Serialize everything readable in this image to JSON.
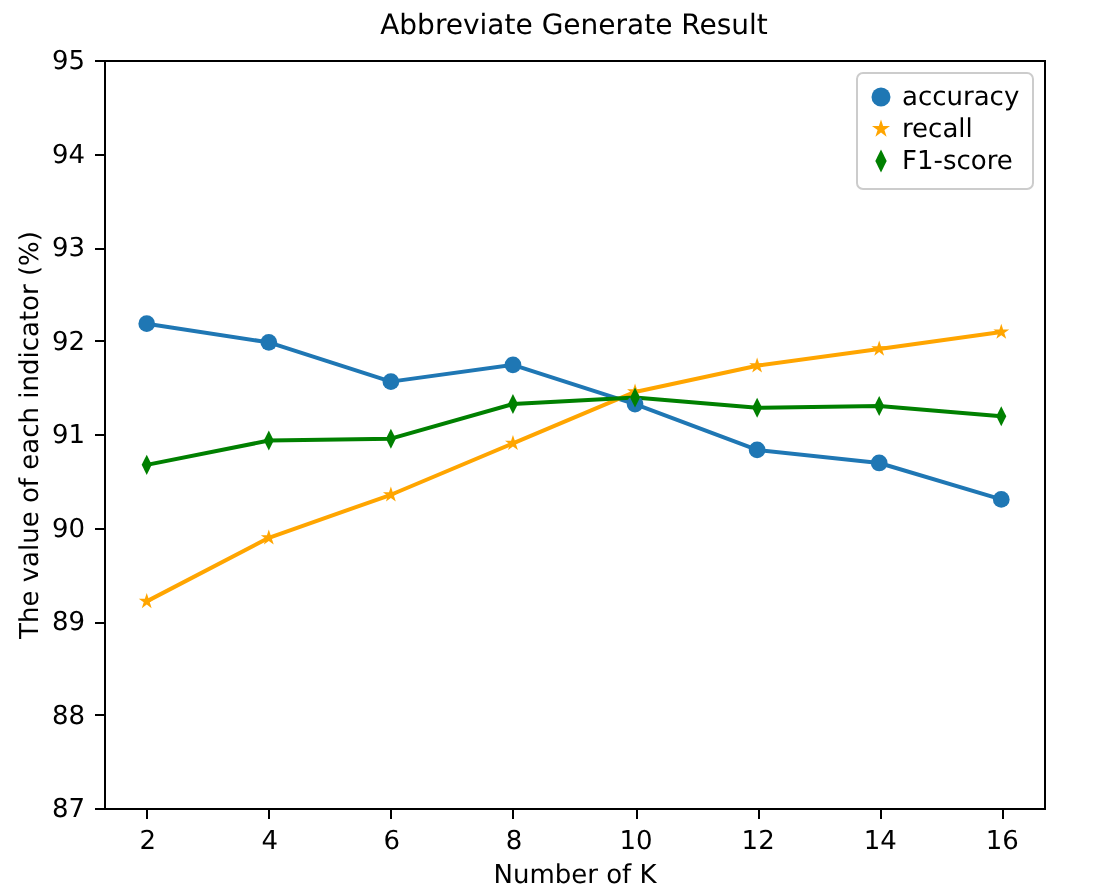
{
  "chart_data": {
    "type": "line",
    "title": "Abbreviate Generate Result",
    "xlabel": "Number of K",
    "ylabel": "The value of each indicator (%)",
    "x": [
      2,
      4,
      6,
      8,
      10,
      12,
      14,
      16
    ],
    "xlim": [
      1.3,
      16.7
    ],
    "xticks": [
      2,
      4,
      6,
      8,
      10,
      12,
      14,
      16
    ],
    "ylim": [
      87,
      95
    ],
    "yticks": [
      87,
      88,
      89,
      90,
      91,
      92,
      93,
      94,
      95
    ],
    "legend": "top right",
    "grid": false,
    "series": [
      {
        "name": "accuracy",
        "color": "#1f77b4",
        "marker": "circle",
        "values": [
          92.18,
          91.98,
          91.56,
          91.74,
          91.32,
          90.83,
          90.69,
          90.3
        ]
      },
      {
        "name": "recall",
        "color": "#ffa500",
        "marker": "star",
        "values": [
          89.21,
          89.89,
          90.35,
          90.9,
          91.45,
          91.73,
          91.91,
          92.09
        ]
      },
      {
        "name": "F1-score",
        "color": "#008000",
        "marker": "diamond",
        "values": [
          90.67,
          90.93,
          90.95,
          91.32,
          91.39,
          91.28,
          91.3,
          91.19
        ]
      }
    ]
  }
}
